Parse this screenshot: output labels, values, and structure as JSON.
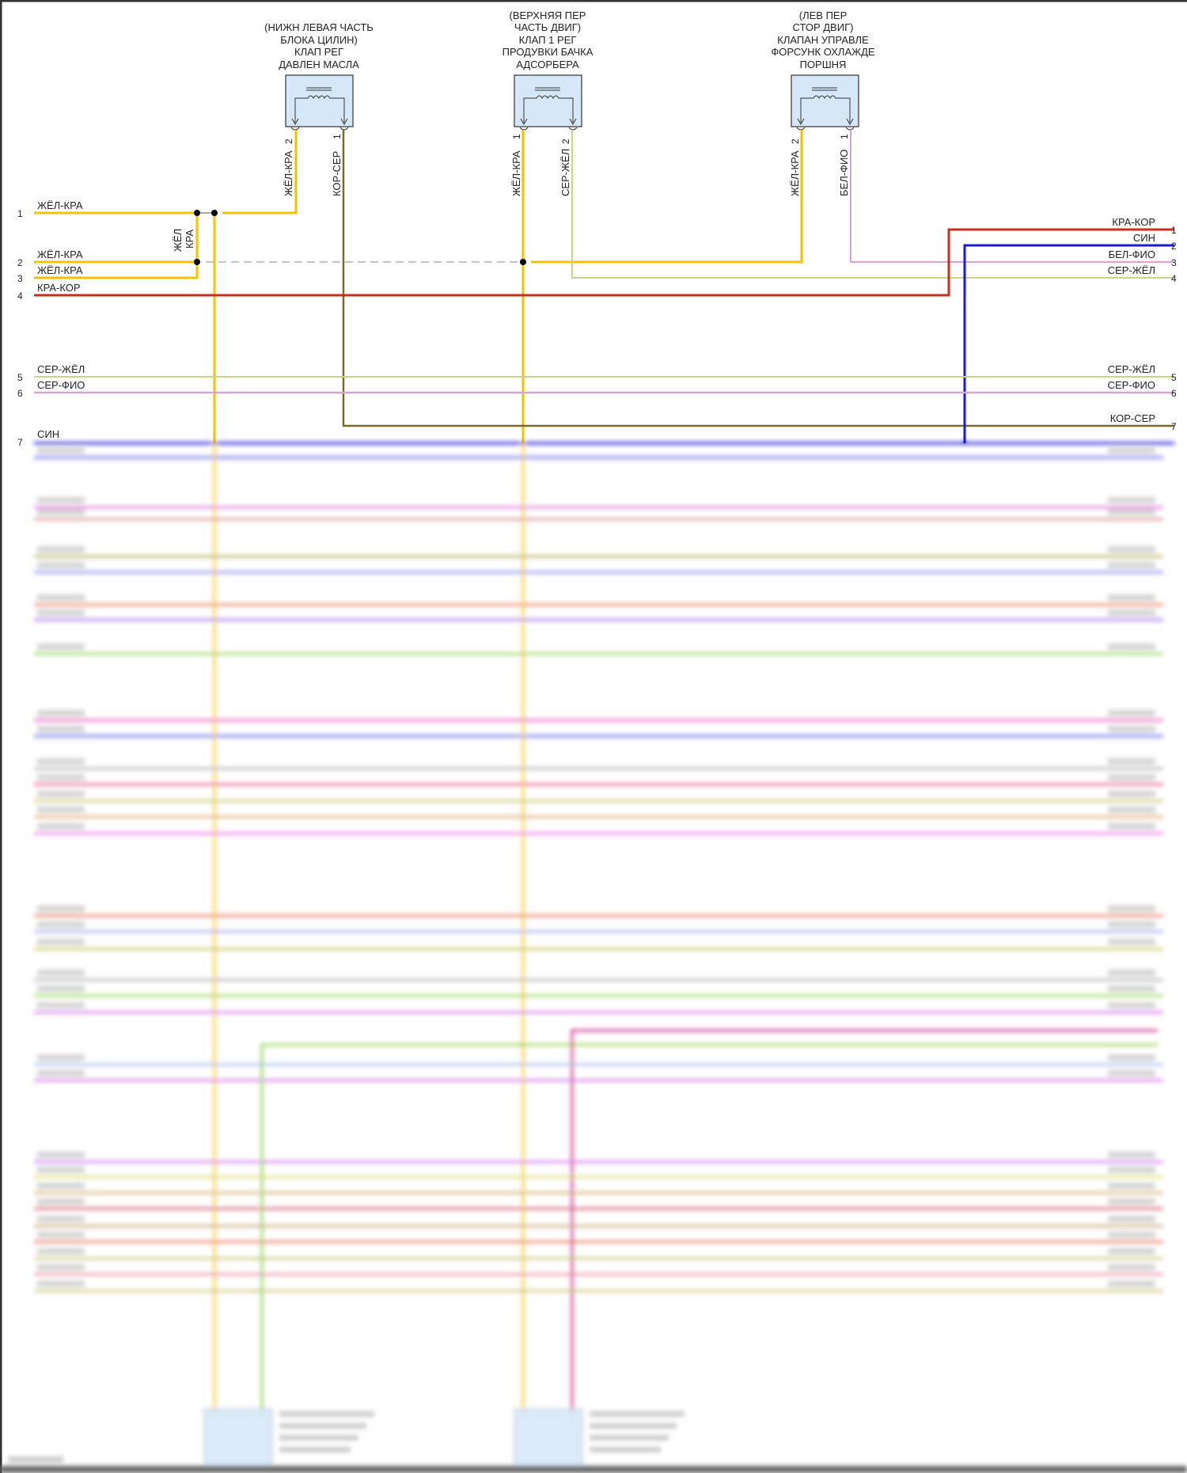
{
  "components": [
    {
      "title_lines": [
        "(НИЖН ЛЕВАЯ ЧАСТЬ",
        "БЛОКА ЦИЛИН)",
        "КЛАП РЕГ",
        "ДАВЛЕН МАСЛА"
      ],
      "pins": [
        {
          "num": "2",
          "wire": "ЖЁЛ-КРА"
        },
        {
          "num": "1",
          "wire": "КОР-СЕР"
        }
      ]
    },
    {
      "title_lines": [
        "(ВЕРХНЯЯ ПЕР",
        "ЧАСТЬ ДВИГ)",
        "КЛАП 1 РЕГ",
        "ПРОДУВКИ БАЧКА",
        "АДСОРБЕРА"
      ],
      "pins": [
        {
          "num": "1",
          "wire": "ЖЁЛ-КРА"
        },
        {
          "num": "2",
          "wire": "СЕР-ЖЁЛ"
        }
      ]
    },
    {
      "title_lines": [
        "(ЛЕВ ПЕР",
        "СТОР ДВИГ)",
        "КЛАПАН УПРАВЛЕ",
        "ФОРСУНК ОХЛАЖДЕ",
        "ПОРШНЯ"
      ],
      "pins": [
        {
          "num": "2",
          "wire": "ЖЁЛ-КРА"
        },
        {
          "num": "1",
          "wire": "БЕЛ-ФИО"
        }
      ]
    }
  ],
  "splice_label": [
    "ЖЁЛ",
    "КРА"
  ],
  "left_connector": [
    {
      "num": "1",
      "wire": "ЖЁЛ-КРА"
    },
    {
      "num": "2",
      "wire": "ЖЁЛ-КРА"
    },
    {
      "num": "3",
      "wire": "ЖЁЛ-КРА"
    },
    {
      "num": "4",
      "wire": "КРА-КОР"
    },
    {
      "num": "5",
      "wire": "СЕР-ЖЁЛ"
    },
    {
      "num": "6",
      "wire": "СЕР-ФИО"
    },
    {
      "num": "7",
      "wire": "СИН"
    }
  ],
  "right_connector": [
    {
      "num": "1",
      "wire": "КРА-КОР"
    },
    {
      "num": "2",
      "wire": "СИН"
    },
    {
      "num": "3",
      "wire": "БЕЛ-ФИО"
    },
    {
      "num": "4",
      "wire": "СЕР-ЖЁЛ"
    },
    {
      "num": "5",
      "wire": "СЕР-ЖЁЛ"
    },
    {
      "num": "6",
      "wire": "СЕР-ФИО"
    },
    {
      "num": "7",
      "wire": "КОР-СЕР"
    }
  ],
  "colors": {
    "yellow_red": "#f2c200",
    "red_brown": "#c0321e",
    "blue": "#1a1ad0",
    "white_violet": "#d9a0d9",
    "grey_yellow": "#c8d48a",
    "grey_violet": "#d4a4d4",
    "brown_grey": "#7a6a2a",
    "connector_fill": "#d6e8f8",
    "blurred_wires": [
      "#9a9af0",
      "#e8a0e8",
      "#e0b0b0",
      "#c8c890",
      "#b0b0f0",
      "#f0a890",
      "#c0a0f0",
      "#b8e090",
      "#f090d0",
      "#9a9af0",
      "#c8c8c8",
      "#f090b0",
      "#d8d8a0",
      "#e8c0a0",
      "#f0a0f0",
      "#f0a090",
      "#c0c0f0",
      "#d8d890",
      "#c8c8c8",
      "#b8e090",
      "#e0a0f0",
      "#c0d0f0",
      "#e0a0f0",
      "#e0a0f0",
      "#e8e8a0",
      "#e0c8a0",
      "#e090a0",
      "#d8c0a0",
      "#f0a090",
      "#d8d8a0",
      "#f0b0c0",
      "#d8d8a0",
      "#f0b090"
    ]
  }
}
